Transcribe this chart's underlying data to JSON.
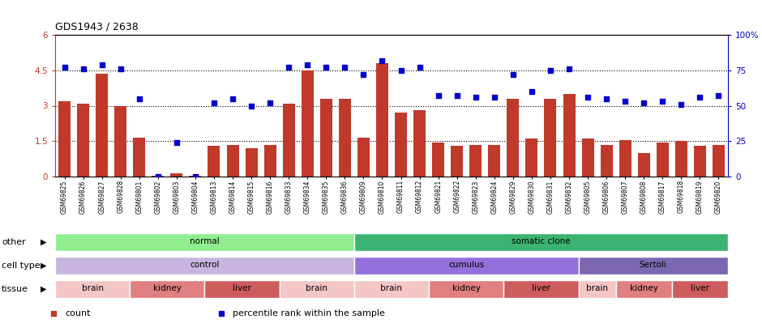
{
  "title": "GDS1943 / 2638",
  "samples": [
    "GSM69825",
    "GSM69826",
    "GSM69827",
    "GSM69828",
    "GSM69801",
    "GSM69802",
    "GSM69803",
    "GSM69804",
    "GSM69813",
    "GSM69814",
    "GSM69815",
    "GSM69816",
    "GSM69833",
    "GSM69834",
    "GSM69835",
    "GSM69836",
    "GSM69809",
    "GSM69810",
    "GSM69811",
    "GSM69812",
    "GSM69821",
    "GSM69822",
    "GSM69823",
    "GSM69824",
    "GSM69829",
    "GSM69830",
    "GSM69831",
    "GSM69832",
    "GSM69805",
    "GSM69806",
    "GSM69807",
    "GSM69808",
    "GSM69817",
    "GSM69818",
    "GSM69819",
    "GSM69820"
  ],
  "count": [
    3.2,
    3.1,
    4.35,
    3.0,
    1.65,
    0.02,
    0.15,
    0.02,
    1.3,
    1.35,
    1.2,
    1.35,
    3.1,
    4.5,
    3.3,
    3.3,
    1.65,
    4.8,
    2.7,
    2.8,
    1.45,
    1.3,
    1.35,
    1.35,
    3.3,
    1.6,
    3.3,
    3.5,
    1.6,
    1.35,
    1.55,
    1.0,
    1.45,
    1.5,
    1.3,
    1.35
  ],
  "percentile": [
    77,
    76,
    79,
    76,
    55,
    0,
    24,
    0,
    52,
    55,
    50,
    52,
    77,
    79,
    77,
    77,
    72,
    82,
    75,
    77,
    57,
    57,
    56,
    56,
    72,
    60,
    75,
    76,
    56,
    55,
    53,
    52,
    53,
    51,
    56,
    57
  ],
  "bar_color": "#c0392b",
  "dot_color": "#0000cc",
  "ylim_left": [
    0,
    6
  ],
  "ylim_right": [
    0,
    100
  ],
  "yticks_left": [
    0,
    1.5,
    3.0,
    4.5,
    6.0
  ],
  "ytick_labels_left": [
    "0",
    "1.5",
    "3",
    "4.5",
    "6"
  ],
  "yticks_right": [
    0,
    25,
    50,
    75,
    100
  ],
  "ytick_labels_right": [
    "0",
    "25",
    "50",
    "75",
    "100%"
  ],
  "hlines": [
    1.5,
    3.0,
    4.5
  ],
  "other_groups": [
    {
      "label": "normal",
      "start": 0,
      "end": 16,
      "color": "#90ee90"
    },
    {
      "label": "somatic clone",
      "start": 16,
      "end": 36,
      "color": "#3cb371"
    }
  ],
  "celltype_groups": [
    {
      "label": "control",
      "start": 0,
      "end": 16,
      "color": "#c8b4e0"
    },
    {
      "label": "cumulus",
      "start": 16,
      "end": 28,
      "color": "#9370db"
    },
    {
      "label": "Sertoli",
      "start": 28,
      "end": 36,
      "color": "#7b68b0"
    }
  ],
  "tissue_groups": [
    {
      "label": "brain",
      "start": 0,
      "end": 4,
      "color": "#f5c6c6"
    },
    {
      "label": "kidney",
      "start": 4,
      "end": 8,
      "color": "#e08080"
    },
    {
      "label": "liver",
      "start": 8,
      "end": 12,
      "color": "#cd5c5c"
    },
    {
      "label": "brain",
      "start": 12,
      "end": 16,
      "color": "#f5c6c6"
    },
    {
      "label": "brain",
      "start": 16,
      "end": 20,
      "color": "#f5c6c6"
    },
    {
      "label": "kidney",
      "start": 20,
      "end": 24,
      "color": "#e08080"
    },
    {
      "label": "liver",
      "start": 24,
      "end": 28,
      "color": "#cd5c5c"
    },
    {
      "label": "brain",
      "start": 28,
      "end": 30,
      "color": "#f5c6c6"
    },
    {
      "label": "kidney",
      "start": 30,
      "end": 33,
      "color": "#e08080"
    },
    {
      "label": "liver",
      "start": 33,
      "end": 36,
      "color": "#cd5c5c"
    }
  ],
  "row_labels": [
    "other",
    "cell type",
    "tissue"
  ],
  "legend_items": [
    {
      "color": "#c0392b",
      "label": "count"
    },
    {
      "color": "#0000cc",
      "label": "percentile rank within the sample"
    }
  ]
}
